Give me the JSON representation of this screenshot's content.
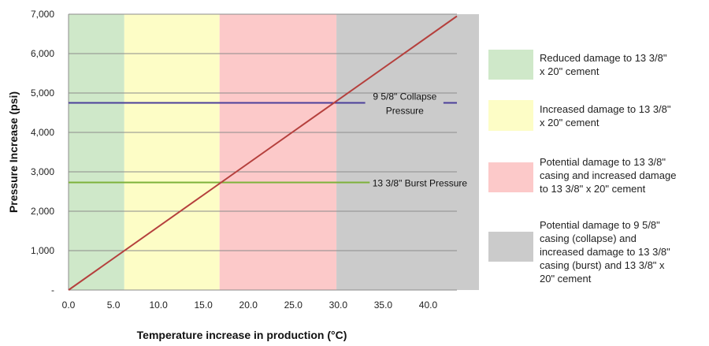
{
  "chart_data": {
    "type": "line",
    "xlabel": "Temperature increase in production (°C)",
    "ylabel": "Pressure Increase (psi)",
    "xlim": [
      0,
      43.2
    ],
    "ylim": [
      0,
      7000
    ],
    "x_ticks": [
      "0.0",
      "5.0",
      "10.0",
      "15.0",
      "20.0",
      "25.0",
      "30.0",
      "35.0",
      "40.0"
    ],
    "y_ticks": [
      "-",
      "1,000",
      "2,000",
      "3,000",
      "4,000",
      "5,000",
      "6,000",
      "7,000"
    ],
    "grid": "horizontal",
    "series": [
      {
        "x": [
          0,
          43.2
        ],
        "y": [
          0,
          6950
        ],
        "color": "#b5403d"
      }
    ],
    "reference_lines": [
      {
        "name": "9 5/8\" Collapse Pressure",
        "label_lines": [
          "9 5/8\" Collapse",
          "Pressure"
        ],
        "y": 4750,
        "color": "#4b3f9a"
      },
      {
        "name": "13 3/8\" Burst Pressure",
        "label_lines": [
          "13 3/8\" Burst Pressure"
        ],
        "y": 2730,
        "color": "#7db23a"
      }
    ],
    "zones": [
      {
        "x_range": [
          0,
          6.2
        ],
        "color": "#cfe8c9",
        "legend_lines": [
          "Reduced damage to 13 3/8\"",
          "x 20\" cement"
        ]
      },
      {
        "x_range": [
          6.2,
          16.8
        ],
        "color": "#fdfdc6",
        "legend_lines": [
          "Increased damage to 13 3/8\"",
          "x 20\" cement"
        ]
      },
      {
        "x_range": [
          16.8,
          29.8
        ],
        "color": "#fcc9c9",
        "legend_lines": [
          "Potential damage to 13 3/8\"",
          "casing and increased damage",
          "to 13 3/8\" x 20\" cement"
        ]
      },
      {
        "x_range": [
          29.8,
          45.8
        ],
        "color": "#cbcbcb",
        "legend_lines": [
          "Potential damage to 9 5/8\"",
          "casing (collapse) and",
          "increased damage to 13 3/8\"",
          "casing (burst) and 13 3/8\" x",
          "20\" cement"
        ]
      }
    ]
  }
}
